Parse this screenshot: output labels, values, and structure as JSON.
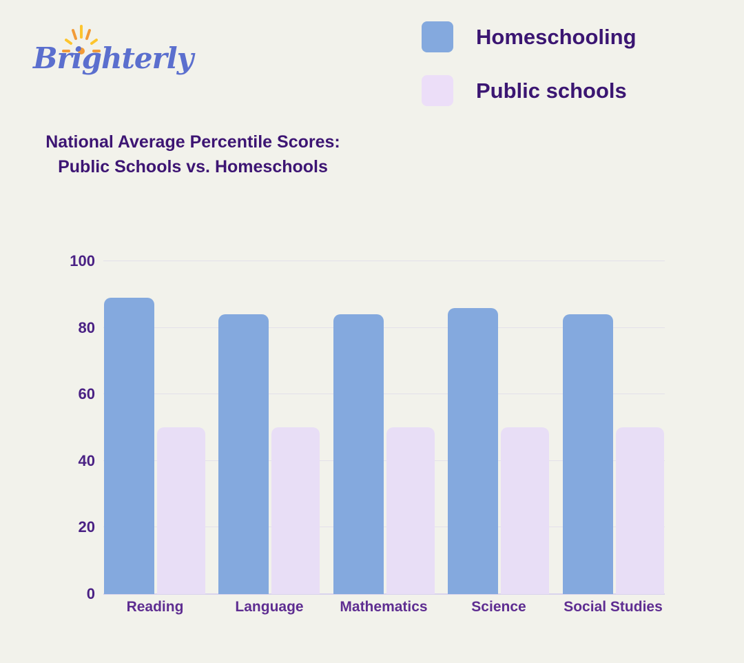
{
  "page": {
    "background": "#f2f2eb"
  },
  "logo": {
    "text": "Brighterly",
    "color": "#5b6fce",
    "sun_colors": {
      "orange": "#f29b38",
      "yellow": "#fdc52e"
    }
  },
  "legend": {
    "items": [
      {
        "label": "Homeschooling",
        "color": "#84a9de"
      },
      {
        "label": "Public schools",
        "color": "#ecdef8"
      }
    ],
    "text_color": "#3b1672"
  },
  "title": {
    "line1": "National Average Percentile Scores:",
    "line2": "Public Schools vs. Homeschools",
    "color": "#3d1573"
  },
  "chart_data": {
    "type": "bar",
    "title": "National Average Percentile Scores: Public Schools vs. Homeschools",
    "categories": [
      "Reading",
      "Language",
      "Mathematics",
      "Science",
      "Social Studies"
    ],
    "series": [
      {
        "name": "Homeschooling",
        "color": "#84a9de",
        "values": [
          89,
          84,
          84,
          86,
          84
        ]
      },
      {
        "name": "Public schools",
        "color": "#e8def6",
        "values": [
          50,
          50,
          50,
          50,
          50
        ]
      }
    ],
    "ylim": [
      0,
      100
    ],
    "yticks": [
      0,
      20,
      40,
      60,
      80,
      100
    ],
    "grid": true,
    "gridline_color": "#e3e0ea",
    "baseline_color": "#d9d3ec",
    "tick_label_color": "#4a2184",
    "category_label_color": "#5e2d91",
    "legend_position": "top-right"
  }
}
